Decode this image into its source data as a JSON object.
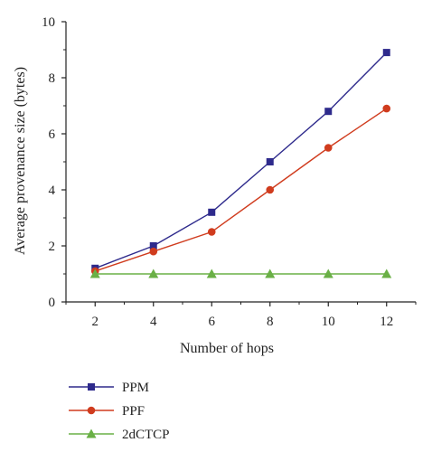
{
  "chart_data": {
    "type": "line",
    "xlabel": "Number of hops",
    "ylabel": "Average provenance size (bytes)",
    "x": [
      2,
      4,
      6,
      8,
      10,
      12
    ],
    "xlim": [
      1,
      13
    ],
    "ylim": [
      0,
      10
    ],
    "xticks": [
      "2",
      "4",
      "6",
      "8",
      "10",
      "12"
    ],
    "yticks": [
      "0",
      "2",
      "4",
      "6",
      "8",
      "10"
    ],
    "grid": false,
    "legend_position": "bottom-left",
    "series": [
      {
        "name": "PPM",
        "values": [
          1.2,
          2.0,
          3.2,
          5.0,
          6.8,
          8.9
        ],
        "color": "#2e2a8c",
        "marker": "square"
      },
      {
        "name": "PPF",
        "values": [
          1.1,
          1.8,
          2.5,
          4.0,
          5.5,
          6.9
        ],
        "color": "#d03c1e",
        "marker": "circle"
      },
      {
        "name": "2dCTCP",
        "values": [
          1.0,
          1.0,
          1.0,
          1.0,
          1.0,
          1.0
        ],
        "color": "#6ab046",
        "marker": "triangle"
      }
    ]
  }
}
